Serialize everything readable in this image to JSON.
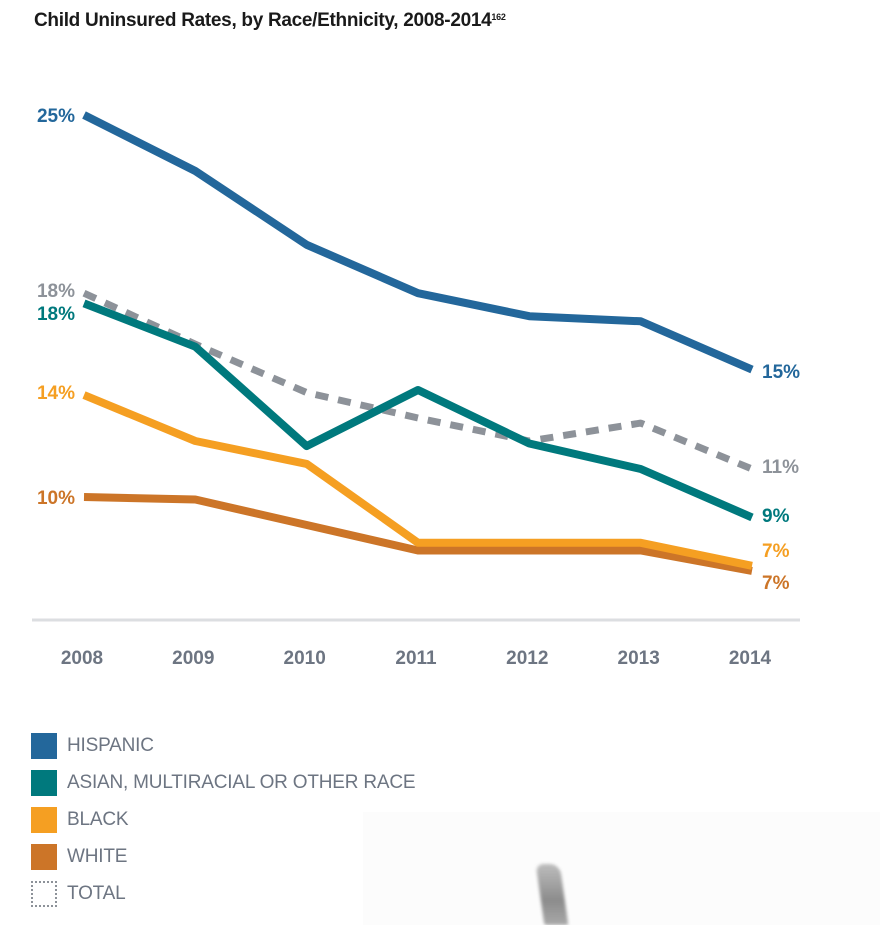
{
  "chart_data": {
    "type": "line",
    "title": "Child Uninsured Rates, by Race/Ethnicity, 2008-2014",
    "title_superscript": "162",
    "xlabel": "",
    "ylabel": "",
    "categories": [
      "2008",
      "2009",
      "2010",
      "2011",
      "2012",
      "2013",
      "2014"
    ],
    "ylim": [
      5,
      26
    ],
    "grid": false,
    "legend_position": "bottom-left",
    "series": [
      {
        "name": "HISPANIC",
        "color": "#23679b",
        "style": "solid",
        "values": [
          25,
          22.8,
          19.9,
          18.0,
          17.1,
          16.9,
          15
        ],
        "start_label": "25%",
        "end_label": "15%"
      },
      {
        "name": "ASIAN, MULTIRACIAL OR OTHER RACE",
        "color": "#00797d",
        "style": "solid",
        "values": [
          17.6,
          15.9,
          12.0,
          14.2,
          12.1,
          11.1,
          9.2
        ],
        "start_label": "18%",
        "end_label": "9%"
      },
      {
        "name": "BLACK",
        "color": "#f59f22",
        "style": "solid",
        "values": [
          14,
          12.2,
          11.3,
          8.2,
          8.2,
          8.2,
          7.3
        ],
        "start_label": "14%",
        "end_label": "7%"
      },
      {
        "name": "WHITE",
        "color": "#cc7528",
        "style": "solid",
        "values": [
          10,
          9.9,
          8.9,
          7.9,
          7.9,
          7.9,
          7.1
        ],
        "start_label": "10%",
        "end_label": "7%"
      },
      {
        "name": "TOTAL",
        "color": "#8d9299",
        "style": "dashed",
        "values": [
          18,
          16.0,
          14.1,
          13.1,
          12.2,
          12.9,
          11.1
        ],
        "start_label": "18%",
        "end_label": "11%"
      }
    ]
  },
  "colors": {
    "axis_line": "#dcdee1",
    "tick_label": "#6d7582"
  }
}
